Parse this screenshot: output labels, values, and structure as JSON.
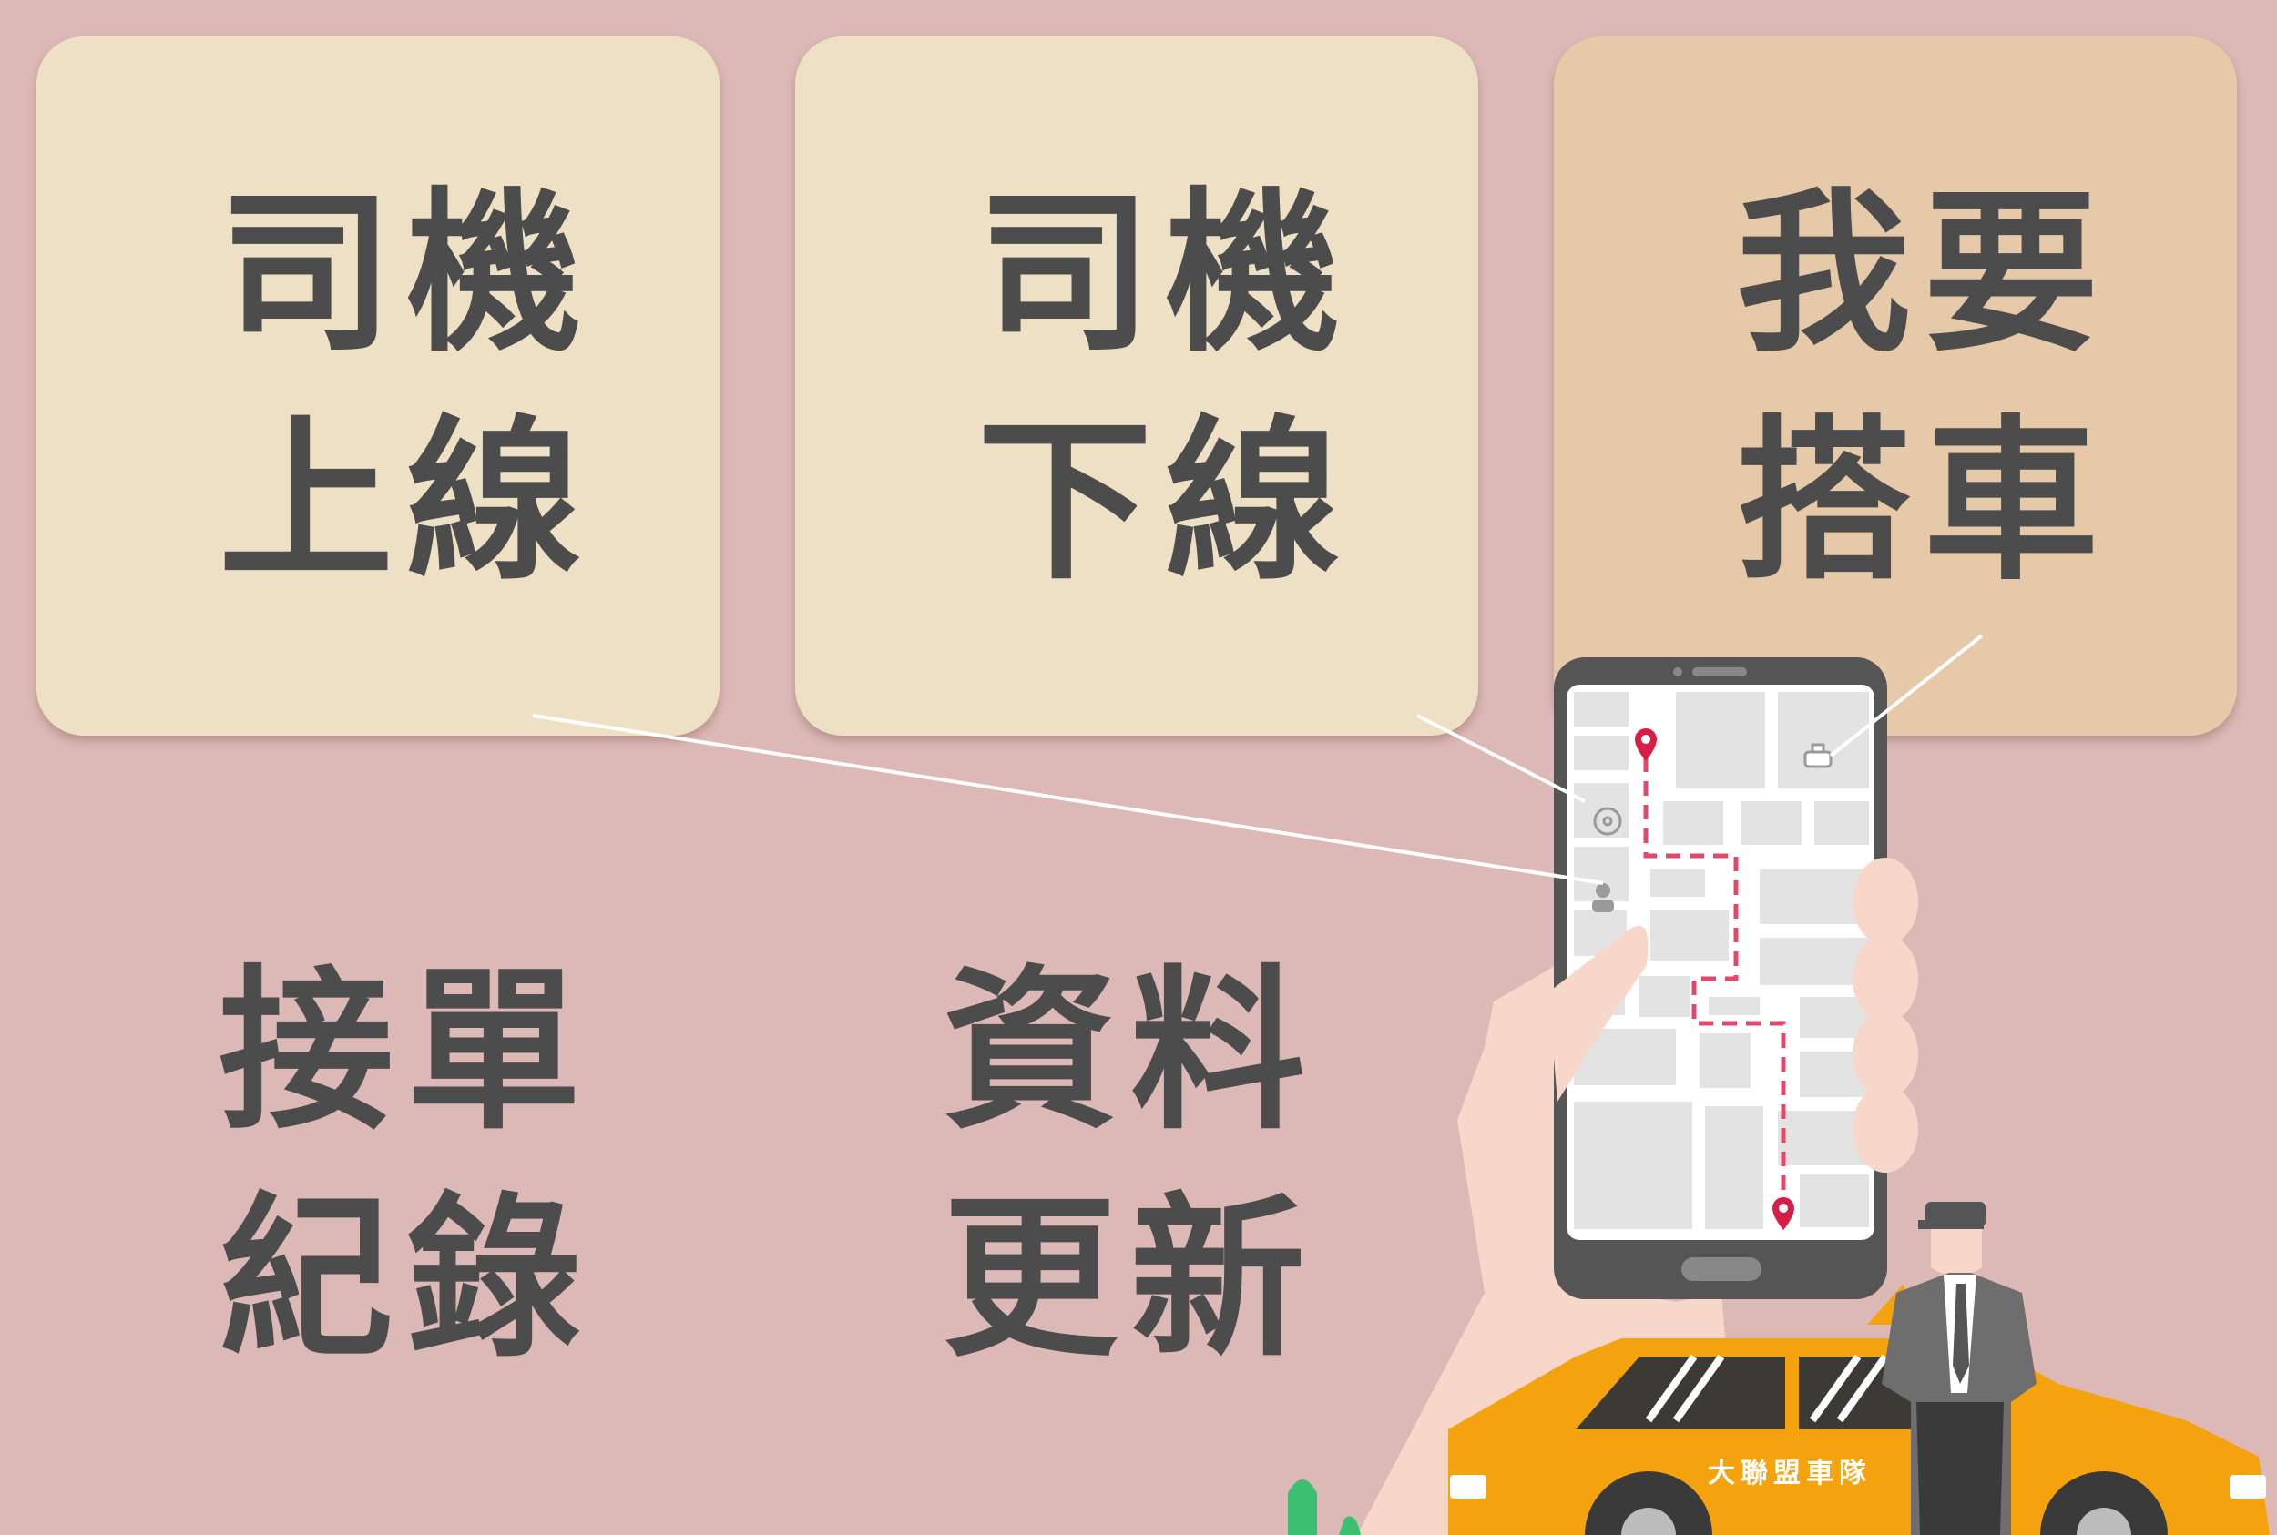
{
  "menu": {
    "driver_online": {
      "line1": "司機",
      "line2": "上線"
    },
    "driver_offline": {
      "line1": "司機",
      "line2": "下線"
    },
    "ride_request": {
      "line1": "我要",
      "line2": "搭車"
    },
    "order_history": {
      "line1": "接單",
      "line2": "紀錄"
    },
    "profile_update": {
      "line1": "資料",
      "line2": "更新"
    }
  },
  "illustration": {
    "taxi_door_text": "大聯盟車隊",
    "icons": [
      "taxi-icon",
      "steering-wheel-icon",
      "driver-icon",
      "map-pin-icon"
    ]
  },
  "colors": {
    "background": "#dcb9b6",
    "card_light": "#ede0c4",
    "card_accent": "#e6c9a8",
    "label_text": "#4d4c4c",
    "taxi": "#f5a20f",
    "pin": "#d81e47"
  }
}
